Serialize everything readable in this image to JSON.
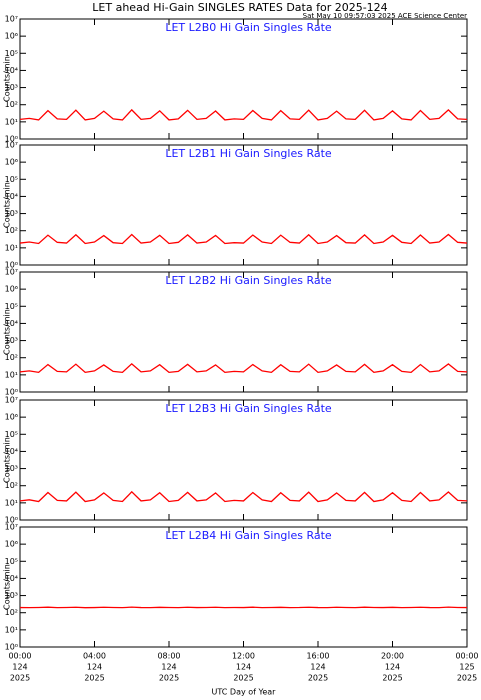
{
  "title": "LET ahead Hi-Gain SINGLES RATES Data for 2025-124",
  "timestamp": "Sat May 10 09:57:03 2025 ACE Science Center",
  "chart_data": [
    {
      "type": "line",
      "title": "LET L2B0 Hi Gain Singles Rate",
      "ylabel": "Counts/min",
      "log_y": true,
      "grid": false,
      "ylim": [
        1,
        10000000
      ],
      "yticks": [
        {
          "value": 1,
          "label": "10⁰"
        },
        {
          "value": 10,
          "label": "10¹"
        },
        {
          "value": 100,
          "label": "10²"
        },
        {
          "value": 1000,
          "label": "10³"
        },
        {
          "value": 10000,
          "label": "10⁴"
        },
        {
          "value": 100000,
          "label": "10⁵"
        },
        {
          "value": 1000000,
          "label": "10⁶"
        },
        {
          "value": 10000000,
          "label": "10⁷"
        }
      ],
      "xlim": [
        0,
        24
      ],
      "xticks": [
        0,
        4,
        8,
        12,
        16,
        20,
        24
      ],
      "x": [
        0,
        0.5,
        1,
        1.5,
        2,
        2.5,
        3,
        3.5,
        4,
        4.5,
        5,
        5.5,
        6,
        6.5,
        7,
        7.5,
        8,
        8.5,
        9,
        9.5,
        10,
        10.5,
        11,
        11.5,
        12,
        12.5,
        13,
        13.5,
        14,
        14.5,
        15,
        15.5,
        16,
        16.5,
        17,
        17.5,
        18,
        18.5,
        19,
        19.5,
        20,
        20.5,
        21,
        21.5,
        22,
        22.5,
        23,
        23.5,
        24
      ],
      "series": [
        {
          "name": "L2B0",
          "color": "#ff0000",
          "values": [
            14,
            16,
            13,
            45,
            15,
            14,
            48,
            13,
            16,
            42,
            15,
            13,
            50,
            14,
            16,
            44,
            13,
            15,
            47,
            14,
            16,
            43,
            13,
            15,
            14,
            46,
            16,
            13,
            45,
            15,
            14,
            48,
            13,
            16,
            42,
            15,
            14,
            47,
            13,
            16,
            44,
            15,
            13,
            46,
            14,
            16,
            50,
            15,
            14
          ]
        }
      ]
    },
    {
      "type": "line",
      "title": "LET L2B1 Hi Gain Singles Rate",
      "ylabel": "Counts/min",
      "log_y": true,
      "grid": false,
      "ylim": [
        1,
        10000000
      ],
      "yticks": [
        {
          "value": 1,
          "label": "10⁰"
        },
        {
          "value": 10,
          "label": "10¹"
        },
        {
          "value": 100,
          "label": "10²"
        },
        {
          "value": 1000,
          "label": "10³"
        },
        {
          "value": 10000,
          "label": "10⁴"
        },
        {
          "value": 100000,
          "label": "10⁵"
        },
        {
          "value": 1000000,
          "label": "10⁶"
        },
        {
          "value": 10000000,
          "label": "10⁷"
        }
      ],
      "xlim": [
        0,
        24
      ],
      "xticks": [
        0,
        4,
        8,
        12,
        16,
        20,
        24
      ],
      "x": [
        0,
        0.5,
        1,
        1.5,
        2,
        2.5,
        3,
        3.5,
        4,
        4.5,
        5,
        5.5,
        6,
        6.5,
        7,
        7.5,
        8,
        8.5,
        9,
        9.5,
        10,
        10.5,
        11,
        11.5,
        12,
        12.5,
        13,
        13.5,
        14,
        14.5,
        15,
        15.5,
        16,
        16.5,
        17,
        17.5,
        18,
        18.5,
        19,
        19.5,
        20,
        20.5,
        21,
        21.5,
        22,
        22.5,
        23,
        23.5,
        24
      ],
      "series": [
        {
          "name": "L2B1",
          "color": "#ff0000",
          "values": [
            19,
            22,
            18,
            55,
            21,
            19,
            58,
            18,
            22,
            52,
            20,
            18,
            60,
            19,
            22,
            54,
            18,
            21,
            57,
            19,
            22,
            53,
            18,
            20,
            19,
            56,
            22,
            18,
            55,
            21,
            19,
            58,
            18,
            22,
            52,
            20,
            19,
            57,
            18,
            22,
            54,
            21,
            18,
            56,
            19,
            22,
            60,
            21,
            19
          ]
        }
      ]
    },
    {
      "type": "line",
      "title": "LET L2B2 Hi Gain Singles Rate",
      "ylabel": "Counts/min",
      "log_y": true,
      "grid": false,
      "ylim": [
        1,
        10000000
      ],
      "yticks": [
        {
          "value": 1,
          "label": "10⁰"
        },
        {
          "value": 10,
          "label": "10¹"
        },
        {
          "value": 100,
          "label": "10²"
        },
        {
          "value": 1000,
          "label": "10³"
        },
        {
          "value": 10000,
          "label": "10⁴"
        },
        {
          "value": 100000,
          "label": "10⁵"
        },
        {
          "value": 1000000,
          "label": "10⁶"
        },
        {
          "value": 10000000,
          "label": "10⁷"
        }
      ],
      "xlim": [
        0,
        24
      ],
      "xticks": [
        0,
        4,
        8,
        12,
        16,
        20,
        24
      ],
      "x": [
        0,
        0.5,
        1,
        1.5,
        2,
        2.5,
        3,
        3.5,
        4,
        4.5,
        5,
        5.5,
        6,
        6.5,
        7,
        7.5,
        8,
        8.5,
        9,
        9.5,
        10,
        10.5,
        11,
        11.5,
        12,
        12.5,
        13,
        13.5,
        14,
        14.5,
        15,
        15.5,
        16,
        16.5,
        17,
        17.5,
        18,
        18.5,
        19,
        19.5,
        20,
        20.5,
        21,
        21.5,
        22,
        22.5,
        23,
        23.5,
        24
      ],
      "series": [
        {
          "name": "L2B2",
          "color": "#ff0000",
          "values": [
            15,
            17,
            14,
            40,
            16,
            15,
            42,
            14,
            17,
            38,
            16,
            14,
            44,
            15,
            17,
            39,
            14,
            16,
            41,
            15,
            17,
            38,
            14,
            16,
            15,
            40,
            17,
            14,
            39,
            16,
            15,
            42,
            14,
            17,
            38,
            16,
            15,
            41,
            14,
            17,
            39,
            16,
            14,
            40,
            15,
            17,
            43,
            16,
            15
          ]
        }
      ]
    },
    {
      "type": "line",
      "title": "LET L2B3 Hi Gain Singles Rate",
      "ylabel": "Counts/min",
      "log_y": true,
      "grid": false,
      "ylim": [
        1,
        10000000
      ],
      "yticks": [
        {
          "value": 1,
          "label": "10⁰"
        },
        {
          "value": 10,
          "label": "10¹"
        },
        {
          "value": 100,
          "label": "10²"
        },
        {
          "value": 1000,
          "label": "10³"
        },
        {
          "value": 10000,
          "label": "10⁴"
        },
        {
          "value": 100000,
          "label": "10⁵"
        },
        {
          "value": 1000000,
          "label": "10⁶"
        },
        {
          "value": 10000000,
          "label": "10⁷"
        }
      ],
      "xlim": [
        0,
        24
      ],
      "xticks": [
        0,
        4,
        8,
        12,
        16,
        20,
        24
      ],
      "x": [
        0,
        0.5,
        1,
        1.5,
        2,
        2.5,
        3,
        3.5,
        4,
        4.5,
        5,
        5.5,
        6,
        6.5,
        7,
        7.5,
        8,
        8.5,
        9,
        9.5,
        10,
        10.5,
        11,
        11.5,
        12,
        12.5,
        13,
        13.5,
        14,
        14.5,
        15,
        15.5,
        16,
        16.5,
        17,
        17.5,
        18,
        18.5,
        19,
        19.5,
        20,
        20.5,
        21,
        21.5,
        22,
        22.5,
        23,
        23.5,
        24
      ],
      "series": [
        {
          "name": "L2B3",
          "color": "#ff0000",
          "values": [
            13,
            15,
            12,
            40,
            14,
            13,
            42,
            12,
            15,
            38,
            14,
            12,
            44,
            13,
            15,
            39,
            12,
            14,
            41,
            13,
            15,
            38,
            12,
            14,
            13,
            40,
            15,
            12,
            39,
            14,
            13,
            42,
            12,
            15,
            38,
            14,
            13,
            41,
            12,
            15,
            39,
            14,
            12,
            40,
            13,
            15,
            43,
            14,
            13
          ]
        }
      ]
    },
    {
      "type": "line",
      "title": "LET L2B4 Hi Gain Singles Rate",
      "ylabel": "Counts/min",
      "log_y": true,
      "grid": false,
      "ylim": [
        1,
        10000000
      ],
      "yticks": [
        {
          "value": 1,
          "label": "10⁰"
        },
        {
          "value": 10,
          "label": "10¹"
        },
        {
          "value": 100,
          "label": "10²"
        },
        {
          "value": 1000,
          "label": "10³"
        },
        {
          "value": 10000,
          "label": "10⁴"
        },
        {
          "value": 100000,
          "label": "10⁵"
        },
        {
          "value": 1000000,
          "label": "10⁶"
        },
        {
          "value": 10000000,
          "label": "10⁷"
        }
      ],
      "xlim": [
        0,
        24
      ],
      "xlabel": "UTC Day of Year",
      "xticks": [
        {
          "value": 0,
          "label": [
            "00:00",
            "124",
            "2025"
          ]
        },
        {
          "value": 4,
          "label": [
            "04:00",
            "124",
            "2025"
          ]
        },
        {
          "value": 8,
          "label": [
            "08:00",
            "124",
            "2025"
          ]
        },
        {
          "value": 12,
          "label": [
            "12:00",
            "124",
            "2025"
          ]
        },
        {
          "value": 16,
          "label": [
            "16:00",
            "124",
            "2025"
          ]
        },
        {
          "value": 20,
          "label": [
            "20:00",
            "124",
            "2025"
          ]
        },
        {
          "value": 24,
          "label": [
            "00:00",
            "125",
            "2025"
          ]
        }
      ],
      "x": [
        0,
        0.5,
        1,
        1.5,
        2,
        2.5,
        3,
        3.5,
        4,
        4.5,
        5,
        5.5,
        6,
        6.5,
        7,
        7.5,
        8,
        8.5,
        9,
        9.5,
        10,
        10.5,
        11,
        11.5,
        12,
        12.5,
        13,
        13.5,
        14,
        14.5,
        15,
        15.5,
        16,
        16.5,
        17,
        17.5,
        18,
        18.5,
        19,
        19.5,
        20,
        20.5,
        21,
        21.5,
        22,
        22.5,
        23,
        23.5,
        24
      ],
      "series": [
        {
          "name": "L2B4",
          "color": "#ff0000",
          "values": [
            200,
            198,
            202,
            210,
            199,
            201,
            208,
            197,
            200,
            209,
            202,
            198,
            211,
            200,
            199,
            207,
            201,
            198,
            209,
            200,
            202,
            208,
            199,
            201,
            200,
            210,
            198,
            202,
            207,
            199,
            201,
            209,
            200,
            198,
            208,
            202,
            199,
            210,
            201,
            200,
            207,
            198,
            202,
            209,
            200,
            199,
            211,
            201,
            200
          ]
        }
      ]
    }
  ]
}
